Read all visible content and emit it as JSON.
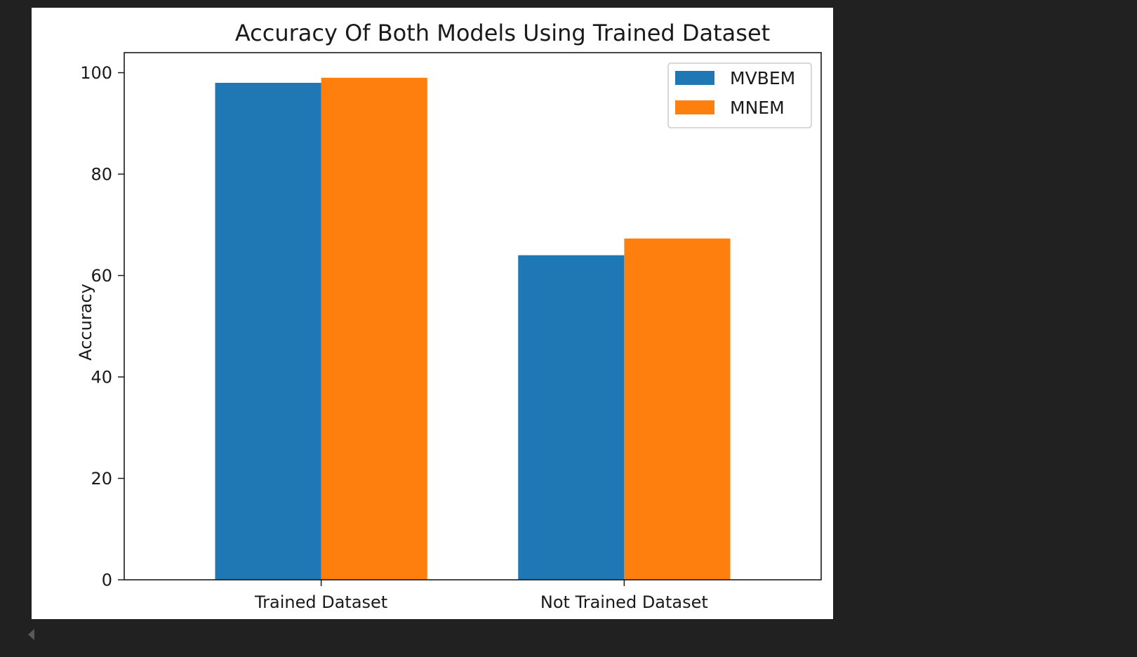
{
  "chart_data": {
    "type": "bar",
    "title": "Accuracy Of Both Models Using Trained Dataset",
    "xlabel": "",
    "ylabel": "Accuracy",
    "categories": [
      "Trained Dataset",
      "Not Trained Dataset"
    ],
    "series": [
      {
        "name": "MVBEM",
        "values": [
          98,
          64
        ],
        "color": "#1f77b4"
      },
      {
        "name": "MNEM",
        "values": [
          99,
          67.3
        ],
        "color": "#ff7f0e"
      }
    ],
    "ylim": [
      0,
      103.95
    ],
    "yticks": [
      0,
      20,
      40,
      60,
      80,
      100
    ],
    "grid": false,
    "legend_position": "top-right"
  }
}
